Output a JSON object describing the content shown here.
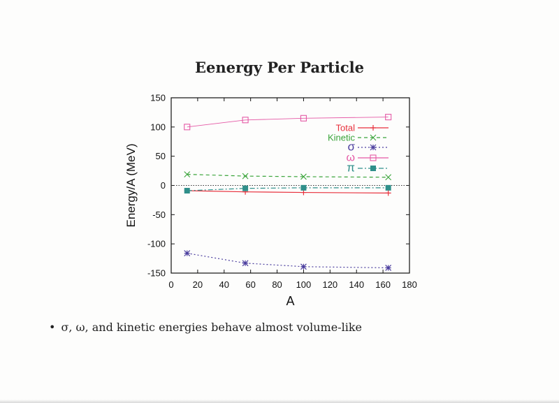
{
  "slide": {
    "title": "Eenergy Per Particle",
    "bullet": "σ, ω, and kinetic energies behave almost volume-like"
  },
  "chart_data": {
    "type": "line",
    "xlabel": "A",
    "ylabel": "Energy/A (MeV)",
    "xlim": [
      0,
      180
    ],
    "ylim": [
      -150,
      150
    ],
    "xticks": [
      0,
      20,
      40,
      60,
      80,
      100,
      120,
      140,
      160,
      180
    ],
    "yticks": [
      -150,
      -100,
      -50,
      0,
      50,
      100,
      150
    ],
    "zero_line": true,
    "grid": false,
    "legend_position": "top-right",
    "x": [
      12,
      56,
      100,
      164
    ],
    "series": [
      {
        "name": "Total",
        "values": [
          -9,
          -11,
          -12,
          -13
        ],
        "color": "#e8303c",
        "marker": "plus",
        "dash": "solid"
      },
      {
        "name": "Kinetic",
        "values": [
          19,
          16,
          15,
          14
        ],
        "color": "#3aa43a",
        "marker": "x",
        "dash": "dashed"
      },
      {
        "name": "σ",
        "values": [
          -116,
          -133,
          -139,
          -141
        ],
        "color": "#4b3e9e",
        "marker": "star",
        "dash": "dotted"
      },
      {
        "name": "ω",
        "values": [
          100,
          112,
          115,
          117
        ],
        "color": "#e55aa6",
        "marker": "square-open",
        "dash": "solid-thin"
      },
      {
        "name": "π",
        "values": [
          -9,
          -5,
          -4,
          -4
        ],
        "color": "#2f8f8a",
        "marker": "square-filled",
        "dash": "dashdot"
      }
    ]
  }
}
